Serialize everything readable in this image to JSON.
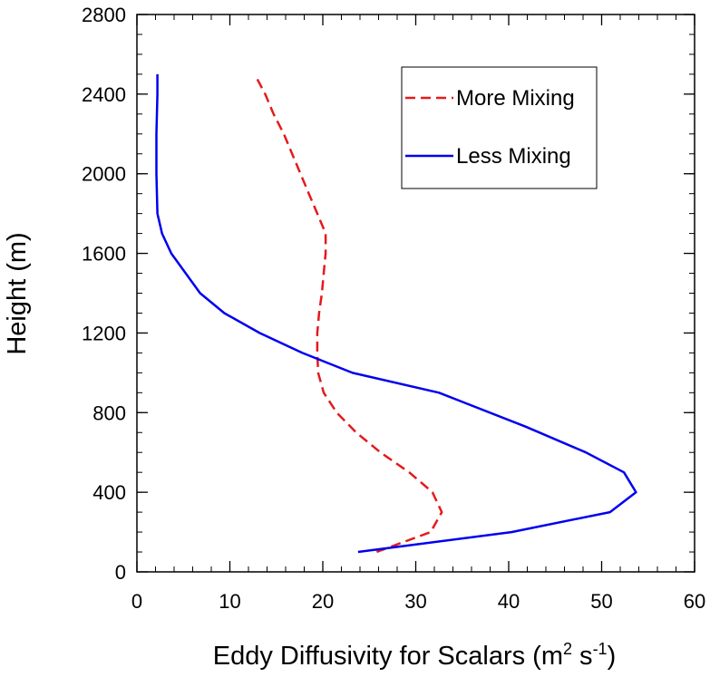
{
  "chart_data": {
    "type": "line",
    "title": "",
    "xlabel": "Eddy Diffusivity for Scalars (m",
    "xlabel_unit_sup1": "2",
    "xlabel_unit_mid": " s",
    "xlabel_unit_sup2": "-1",
    "xlabel_close": ")",
    "ylabel": "Height (m)",
    "xlim": [
      0,
      60
    ],
    "ylim": [
      0,
      2800
    ],
    "x_ticks": [
      0,
      10,
      20,
      30,
      40,
      50,
      60
    ],
    "y_ticks": [
      0,
      400,
      800,
      1200,
      1600,
      2000,
      2400,
      2800
    ],
    "x_tick_labels": [
      "0",
      "10",
      "20",
      "30",
      "40",
      "50",
      "60"
    ],
    "y_tick_labels": [
      "0",
      "400",
      "800",
      "1200",
      "1600",
      "2000",
      "2400",
      "2800"
    ],
    "grid": false,
    "legend_position": "top-right",
    "series": [
      {
        "name": "More Mixing",
        "color": "#e41a1c",
        "style": "dashed",
        "points": [
          {
            "x": 25.8,
            "y": 100
          },
          {
            "x": 31.6,
            "y": 200
          },
          {
            "x": 32.8,
            "y": 300
          },
          {
            "x": 31.8,
            "y": 400
          },
          {
            "x": 29.3,
            "y": 500
          },
          {
            "x": 26.2,
            "y": 600
          },
          {
            "x": 23.6,
            "y": 700
          },
          {
            "x": 21.5,
            "y": 800
          },
          {
            "x": 20.1,
            "y": 900
          },
          {
            "x": 19.5,
            "y": 1000
          },
          {
            "x": 19.4,
            "y": 1100
          },
          {
            "x": 19.4,
            "y": 1200
          },
          {
            "x": 19.6,
            "y": 1300
          },
          {
            "x": 19.9,
            "y": 1400
          },
          {
            "x": 20.1,
            "y": 1500
          },
          {
            "x": 20.3,
            "y": 1600
          },
          {
            "x": 20.3,
            "y": 1700
          },
          {
            "x": 19.4,
            "y": 1800
          },
          {
            "x": 18.5,
            "y": 1900
          },
          {
            "x": 17.6,
            "y": 2000
          },
          {
            "x": 16.7,
            "y": 2100
          },
          {
            "x": 15.8,
            "y": 2200
          },
          {
            "x": 14.7,
            "y": 2300
          },
          {
            "x": 13.8,
            "y": 2400
          },
          {
            "x": 12.9,
            "y": 2480
          }
        ]
      },
      {
        "name": "Less Mixing",
        "color": "#0000ee",
        "style": "solid",
        "points": [
          {
            "x": 23.8,
            "y": 100
          },
          {
            "x": 40.3,
            "y": 200
          },
          {
            "x": 50.9,
            "y": 300
          },
          {
            "x": 53.7,
            "y": 400
          },
          {
            "x": 52.4,
            "y": 500
          },
          {
            "x": 48.3,
            "y": 600
          },
          {
            "x": 41.8,
            "y": 730
          },
          {
            "x": 32.5,
            "y": 900
          },
          {
            "x": 23.2,
            "y": 1000
          },
          {
            "x": 17.8,
            "y": 1100
          },
          {
            "x": 13.2,
            "y": 1200
          },
          {
            "x": 9.4,
            "y": 1300
          },
          {
            "x": 6.8,
            "y": 1400
          },
          {
            "x": 3.7,
            "y": 1600
          },
          {
            "x": 2.7,
            "y": 1700
          },
          {
            "x": 2.2,
            "y": 1800
          },
          {
            "x": 2.1,
            "y": 2000
          },
          {
            "x": 2.1,
            "y": 2200
          },
          {
            "x": 2.2,
            "y": 2400
          },
          {
            "x": 2.2,
            "y": 2500
          }
        ]
      }
    ],
    "legend": [
      {
        "label": "More Mixing",
        "color": "#e41a1c",
        "style": "dashed"
      },
      {
        "label": "Less Mixing",
        "color": "#0000ee",
        "style": "solid"
      }
    ]
  }
}
